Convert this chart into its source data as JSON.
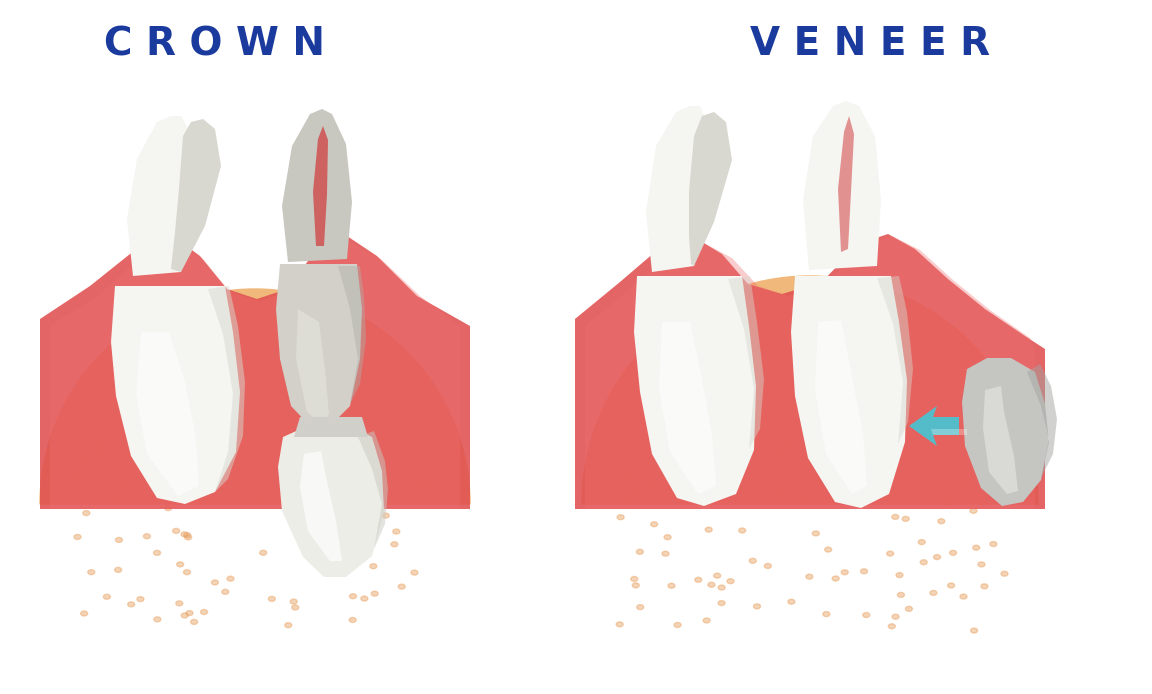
{
  "title_crown": "C R O W N",
  "title_veneer": "V E N E E R",
  "title_color": "#1a3a9e",
  "title_fontsize": 28,
  "bg_color": "#ffffff",
  "bone_color": "#f0b87a",
  "bone_dark": "#e8a060",
  "gum_color": "#e05050",
  "gum_light": "#f07070",
  "tooth_white": "#f5f5f2",
  "tooth_light": "#ffffff",
  "tooth_shadow": "#d8d8d0",
  "crown_piece_color": "#e8e8e0",
  "veneer_color": "#c8c8c0",
  "arrow_color": "#40c8d8",
  "root_color": "#d04040"
}
